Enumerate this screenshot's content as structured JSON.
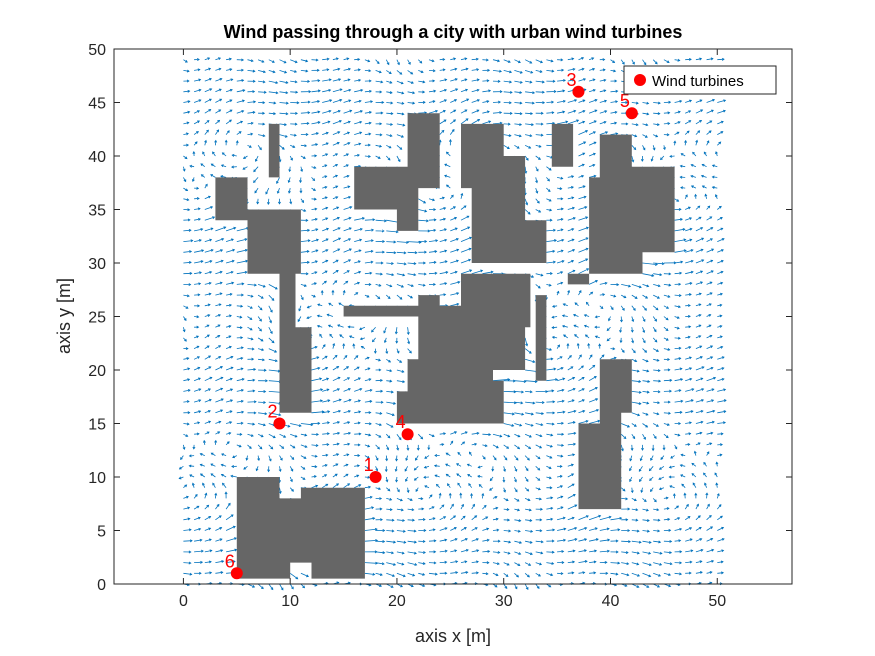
{
  "chart_data": {
    "type": "scatter",
    "title": "Wind passing through a city with urban wind turbines",
    "xlabel": "axis x [m]",
    "ylabel": "axis y [m]",
    "xlim": [
      -6.5,
      57
    ],
    "ylim": [
      0,
      50
    ],
    "xticks": [
      0,
      10,
      20,
      30,
      40,
      50
    ],
    "yticks": [
      0,
      5,
      10,
      15,
      20,
      25,
      30,
      35,
      40,
      45,
      50
    ],
    "legend": {
      "label": "Wind turbines",
      "placement": "top-right"
    },
    "turbines": [
      {
        "label": "1",
        "x": 18,
        "y": 10
      },
      {
        "label": "2",
        "x": 9,
        "y": 15
      },
      {
        "label": "3",
        "x": 37,
        "y": 46
      },
      {
        "label": "4",
        "x": 21,
        "y": 14
      },
      {
        "label": "5",
        "x": 42,
        "y": 44
      },
      {
        "label": "6",
        "x": 5,
        "y": 1
      }
    ],
    "buildings": [
      [
        [
          5,
          0.5
        ],
        [
          10,
          0.5
        ],
        [
          10,
          2
        ],
        [
          12,
          2
        ],
        [
          12,
          0.5
        ],
        [
          17,
          0.5
        ],
        [
          17,
          9
        ],
        [
          11,
          9
        ],
        [
          11,
          8
        ],
        [
          9,
          8
        ],
        [
          9,
          10
        ],
        [
          5,
          10
        ]
      ],
      [
        [
          9,
          16
        ],
        [
          12,
          16
        ],
        [
          12,
          24
        ],
        [
          10.5,
          24
        ],
        [
          10.5,
          30
        ],
        [
          9,
          30
        ]
      ],
      [
        [
          3,
          34
        ],
        [
          6,
          34
        ],
        [
          6,
          29
        ],
        [
          11,
          29
        ],
        [
          11,
          35
        ],
        [
          6,
          35
        ],
        [
          6,
          38
        ],
        [
          3,
          38
        ]
      ],
      [
        [
          8,
          38
        ],
        [
          9,
          38
        ],
        [
          9,
          43
        ],
        [
          8,
          43
        ]
      ],
      [
        [
          20,
          15
        ],
        [
          30,
          15
        ],
        [
          30,
          19
        ],
        [
          29,
          19
        ],
        [
          29,
          21
        ],
        [
          21,
          21
        ],
        [
          21,
          18
        ],
        [
          20,
          18
        ]
      ],
      [
        [
          15,
          25
        ],
        [
          22,
          25
        ],
        [
          22,
          20
        ],
        [
          32,
          20
        ],
        [
          32,
          24
        ],
        [
          32.5,
          24
        ],
        [
          32.5,
          29
        ],
        [
          26,
          29
        ],
        [
          26,
          26
        ],
        [
          24,
          26
        ],
        [
          24,
          27
        ],
        [
          22,
          27
        ],
        [
          22,
          26
        ],
        [
          15,
          26
        ]
      ],
      [
        [
          33,
          19
        ],
        [
          34,
          19
        ],
        [
          34,
          27
        ],
        [
          33,
          27
        ]
      ],
      [
        [
          16,
          35
        ],
        [
          20,
          35
        ],
        [
          20,
          33
        ],
        [
          22,
          33
        ],
        [
          22,
          37
        ],
        [
          24,
          37
        ],
        [
          24,
          44
        ],
        [
          21,
          44
        ],
        [
          21,
          39
        ],
        [
          16,
          39
        ]
      ],
      [
        [
          26,
          37
        ],
        [
          27,
          37
        ],
        [
          27,
          30
        ],
        [
          34,
          30
        ],
        [
          34,
          34
        ],
        [
          32,
          34
        ],
        [
          32,
          40
        ],
        [
          30,
          40
        ],
        [
          30,
          43
        ],
        [
          26,
          43
        ]
      ],
      [
        [
          34.5,
          39
        ],
        [
          36.5,
          39
        ],
        [
          36.5,
          43
        ],
        [
          34.5,
          43
        ]
      ],
      [
        [
          36,
          28
        ],
        [
          38,
          28
        ],
        [
          38,
          34
        ],
        [
          38,
          38
        ],
        [
          39,
          38
        ],
        [
          39,
          42
        ],
        [
          42,
          42
        ],
        [
          42,
          39
        ],
        [
          46,
          39
        ],
        [
          46,
          31
        ],
        [
          43,
          31
        ],
        [
          43,
          29
        ],
        [
          36,
          29
        ],
        [
          36,
          35
        ]
      ],
      [
        [
          37,
          7
        ],
        [
          41,
          7
        ],
        [
          41,
          16
        ],
        [
          42,
          16
        ],
        [
          42,
          21
        ],
        [
          39,
          21
        ],
        [
          39,
          15
        ],
        [
          37,
          15
        ]
      ]
    ]
  }
}
